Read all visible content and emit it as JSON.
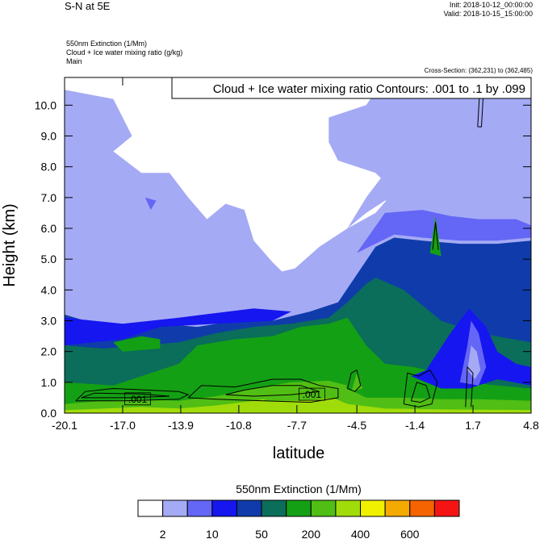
{
  "header": {
    "title": "S-N at 5E",
    "init": "Init: 2018-10-12_00:00:00",
    "valid": "Valid: 2018-10-15_15:00:00",
    "fields": [
      "550nm Extinction   (1/Mm)",
      "Cloud + Ice water mixing ratio   (g/kg)",
      "Main"
    ],
    "cross_section": "Cross-Section: (362,231) to (362,485)"
  },
  "chart_data": {
    "type": "heatmap",
    "title": "S-N at 5E",
    "xlabel": "latitude",
    "ylabel": "Height (km)",
    "xlim": [
      -20.1,
      4.8
    ],
    "ylim": [
      0.0,
      10.9
    ],
    "x_ticks": [
      -20.1,
      -17.0,
      -13.9,
      -10.8,
      -7.7,
      -4.5,
      -1.4,
      1.7,
      4.8
    ],
    "x_tick_labels": [
      "-20.1",
      "-17.0",
      "-13.9",
      "-10.8",
      "-7.7",
      "-4.5",
      "-1.4",
      "1.7",
      "4.8"
    ],
    "y_ticks": [
      0,
      1,
      2,
      3,
      4,
      5,
      6,
      7,
      8,
      9,
      10
    ],
    "y_tick_labels": [
      "0.0",
      "1.0",
      "2.0",
      "3.0",
      "4.0",
      "5.0",
      "6.0",
      "7.0",
      "8.0",
      "9.0",
      "10.0"
    ],
    "contour_title": "Cloud + Ice water mixing ratio Contours: .001 to .1 by .099",
    "contour_levels": [
      0.001,
      0.1
    ],
    "contour_labels": [
      {
        "text": ".001",
        "lat": -16.2,
        "h": 0.45
      },
      {
        "text": ".001",
        "lat": -6.9,
        "h": 0.6
      }
    ],
    "colorbar": {
      "title": "550nm Extinction  (1/Mm)",
      "colors": [
        "#ffffff",
        "#a5aaf5",
        "#6466f5",
        "#1616f0",
        "#0f3caa",
        "#0a6e5a",
        "#14a014",
        "#50be14",
        "#a0dc0a",
        "#f0f000",
        "#f5aa00",
        "#f56400",
        "#f51414"
      ],
      "labels": [
        "2",
        "10",
        "50",
        "200",
        "400",
        "600"
      ]
    },
    "bands": [
      {
        "class": 4,
        "upper": [
          [
            -20.1,
            3.2
          ],
          [
            -19.0,
            3.0
          ],
          [
            -17.0,
            2.7
          ],
          [
            -15.0,
            2.9
          ],
          [
            -13.0,
            2.8
          ],
          [
            -11.0,
            3.0
          ],
          [
            -9.0,
            3.0
          ],
          [
            -7.0,
            3.3
          ],
          [
            -5.5,
            3.6
          ],
          [
            -4.5,
            4.5
          ],
          [
            -3.5,
            5.4
          ],
          [
            -2.5,
            5.7
          ],
          [
            -1.0,
            5.6
          ],
          [
            1.0,
            5.5
          ],
          [
            3.0,
            5.5
          ],
          [
            4.8,
            5.6
          ]
        ]
      },
      {
        "class": 5,
        "upper": [
          [
            -20.1,
            2.2
          ],
          [
            -18.0,
            2.1
          ],
          [
            -16.0,
            2.2
          ],
          [
            -14.0,
            2.3
          ],
          [
            -12.0,
            2.6
          ],
          [
            -10.0,
            2.8
          ],
          [
            -8.0,
            2.9
          ],
          [
            -6.0,
            3.1
          ],
          [
            -5.0,
            3.6
          ],
          [
            -4.0,
            4.2
          ],
          [
            -3.5,
            4.4
          ],
          [
            -2.0,
            4.0
          ],
          [
            -1.0,
            3.5
          ],
          [
            0.0,
            3.0
          ],
          [
            2.0,
            2.6
          ],
          [
            4.8,
            2.3
          ]
        ]
      },
      {
        "class": 6,
        "upper": [
          [
            -20.1,
            1.0
          ],
          [
            -17.5,
            0.9
          ],
          [
            -16.0,
            1.2
          ],
          [
            -14.0,
            1.6
          ],
          [
            -13.0,
            2.2
          ],
          [
            -11.0,
            2.4
          ],
          [
            -9.0,
            2.5
          ],
          [
            -7.5,
            2.8
          ],
          [
            -6.0,
            2.9
          ],
          [
            -5.0,
            3.1
          ],
          [
            -4.0,
            2.2
          ],
          [
            -3.0,
            1.6
          ],
          [
            -1.5,
            1.5
          ],
          [
            0.0,
            1.3
          ],
          [
            1.5,
            1.0
          ],
          [
            3.0,
            0.9
          ],
          [
            4.8,
            0.8
          ]
        ]
      },
      {
        "class": 7,
        "upper": [
          [
            -20.1,
            0.3
          ],
          [
            -18.0,
            0.4
          ],
          [
            -16.0,
            0.45
          ],
          [
            -14.0,
            0.4
          ],
          [
            -12.0,
            0.55
          ],
          [
            -10.0,
            0.8
          ],
          [
            -8.0,
            1.0
          ],
          [
            -6.0,
            1.05
          ],
          [
            -5.0,
            0.8
          ],
          [
            -4.0,
            0.5
          ],
          [
            -2.0,
            0.5
          ],
          [
            0.0,
            0.45
          ],
          [
            2.0,
            0.45
          ],
          [
            4.8,
            0.4
          ]
        ]
      },
      {
        "class": 8,
        "upper": [
          [
            -20.1,
            0.1
          ],
          [
            -18.0,
            0.15
          ],
          [
            -16.0,
            0.2
          ],
          [
            -14.0,
            0.15
          ],
          [
            -12.0,
            0.25
          ],
          [
            -10.0,
            0.4
          ],
          [
            -8.0,
            0.6
          ],
          [
            -6.0,
            0.55
          ],
          [
            -5.0,
            0.3
          ],
          [
            -3.0,
            0.15
          ],
          [
            0.0,
            0.12
          ],
          [
            4.8,
            0.1
          ]
        ]
      }
    ],
    "features": [
      {
        "class": 0,
        "points": [
          [
            -20.1,
            10.9
          ],
          [
            -20.1,
            10.5
          ],
          [
            -17.5,
            10.2
          ],
          [
            -16.5,
            9.0
          ],
          [
            -17.5,
            8.5
          ],
          [
            -16.0,
            7.8
          ],
          [
            -14.5,
            7.8
          ],
          [
            -13.5,
            7.0
          ],
          [
            -12.5,
            6.3
          ],
          [
            -11.5,
            6.8
          ],
          [
            -10.5,
            6.6
          ],
          [
            -10.0,
            5.6
          ],
          [
            -9.0,
            4.9
          ],
          [
            -8.5,
            4.6
          ],
          [
            -7.8,
            4.7
          ],
          [
            -6.5,
            5.4
          ],
          [
            -5.0,
            6.0
          ],
          [
            -3.5,
            6.5
          ],
          [
            -2.5,
            7.2
          ],
          [
            -3.5,
            7.8
          ],
          [
            -5.5,
            8.2
          ],
          [
            -6.0,
            8.8
          ],
          [
            -6.0,
            9.6
          ],
          [
            -4.0,
            10.0
          ],
          [
            -3.0,
            10.9
          ]
        ]
      },
      {
        "class": 1,
        "points": [
          [
            -2.5,
            10.9
          ],
          [
            0.0,
            10.3
          ],
          [
            2.5,
            9.6
          ],
          [
            4.8,
            9.3
          ],
          [
            4.8,
            6.8
          ],
          [
            4.0,
            7.0
          ],
          [
            3.0,
            7.2
          ],
          [
            2.0,
            6.8
          ],
          [
            0.5,
            6.6
          ],
          [
            -1.0,
            6.8
          ],
          [
            -2.0,
            7.0
          ],
          [
            -3.0,
            6.9
          ],
          [
            -4.0,
            6.5
          ],
          [
            -5.0,
            6.0
          ],
          [
            -4.0,
            7.0
          ],
          [
            -3.0,
            7.8
          ],
          [
            -4.0,
            8.5
          ],
          [
            -3.5,
            9.5
          ]
        ]
      },
      {
        "class": 2,
        "points": [
          [
            -4.5,
            5.2
          ],
          [
            -3.0,
            6.5
          ],
          [
            -1.0,
            6.6
          ],
          [
            0.5,
            6.4
          ],
          [
            2.0,
            6.3
          ],
          [
            4.0,
            6.3
          ],
          [
            4.8,
            6.1
          ],
          [
            4.8,
            5.7
          ],
          [
            3.0,
            5.6
          ],
          [
            1.0,
            5.6
          ],
          [
            -1.0,
            5.7
          ],
          [
            -2.5,
            5.8
          ]
        ]
      },
      {
        "class": 3,
        "points": [
          [
            -20.1,
            2.2
          ],
          [
            -17.0,
            2.4
          ],
          [
            -15.0,
            2.8
          ],
          [
            -12.0,
            2.9
          ],
          [
            -9.0,
            3.0
          ],
          [
            -8.0,
            3.3
          ],
          [
            -10.0,
            3.4
          ],
          [
            -14.0,
            3.1
          ],
          [
            -17.0,
            2.9
          ],
          [
            -20.1,
            3.1
          ]
        ]
      },
      {
        "class": 3,
        "points": [
          [
            -1.6,
            1.2
          ],
          [
            -0.8,
            1.4
          ],
          [
            0.5,
            2.6
          ],
          [
            1.5,
            3.4
          ],
          [
            2.4,
            2.8
          ],
          [
            3.0,
            2.0
          ],
          [
            4.0,
            1.6
          ],
          [
            4.8,
            1.5
          ],
          [
            4.8,
            0.9
          ],
          [
            3.0,
            1.1
          ],
          [
            1.5,
            0.8
          ],
          [
            0.0,
            0.8
          ]
        ]
      },
      {
        "class": 2,
        "points": [
          [
            1.0,
            1.0
          ],
          [
            1.4,
            2.2
          ],
          [
            1.6,
            3.0
          ],
          [
            2.0,
            2.6
          ],
          [
            2.4,
            1.5
          ],
          [
            2.0,
            0.9
          ]
        ]
      },
      {
        "class": 1,
        "points": [
          [
            1.4,
            1.4
          ],
          [
            1.6,
            2.2
          ],
          [
            1.9,
            2.0
          ],
          [
            2.1,
            1.4
          ],
          [
            1.8,
            1.1
          ]
        ]
      },
      {
        "class": 6,
        "points": [
          [
            -17.5,
            2.3
          ],
          [
            -16.0,
            2.5
          ],
          [
            -15.0,
            2.4
          ],
          [
            -15.0,
            2.1
          ],
          [
            -17.0,
            2.0
          ]
        ]
      },
      {
        "class": 6,
        "points": [
          [
            -0.6,
            5.2
          ],
          [
            -0.3,
            6.4
          ],
          [
            0.0,
            5.1
          ]
        ]
      },
      {
        "class": 7,
        "points": [
          [
            -9.5,
            0.4
          ],
          [
            -8.5,
            0.9
          ],
          [
            -7.0,
            1.0
          ],
          [
            -6.0,
            1.05
          ],
          [
            -5.0,
            0.9
          ],
          [
            -5.5,
            0.5
          ],
          [
            -7.5,
            0.4
          ]
        ]
      },
      {
        "class": 7,
        "points": [
          [
            -4.8,
            0.7
          ],
          [
            -4.5,
            1.3
          ],
          [
            -4.2,
            0.8
          ]
        ]
      },
      {
        "class": 2,
        "points": [
          [
            -15.8,
            7.0
          ],
          [
            -15.5,
            6.6
          ],
          [
            -15.2,
            6.9
          ]
        ]
      }
    ],
    "contours": [
      [
        [
          -19.5,
          0.4
        ],
        [
          -19.0,
          0.7
        ],
        [
          -17.5,
          0.8
        ],
        [
          -14.0,
          0.7
        ],
        [
          -13.5,
          0.6
        ],
        [
          -14.0,
          0.45
        ],
        [
          -17.0,
          0.4
        ],
        [
          -18.5,
          0.4
        ],
        [
          -19.5,
          0.4
        ]
      ],
      [
        [
          -19.2,
          0.5
        ],
        [
          -18.5,
          0.65
        ],
        [
          -16.0,
          0.62
        ],
        [
          -14.5,
          0.55
        ],
        [
          -16.5,
          0.5
        ],
        [
          -19.2,
          0.5
        ]
      ],
      [
        [
          -13.5,
          0.5
        ],
        [
          -12.8,
          0.9
        ],
        [
          -11.0,
          0.85
        ],
        [
          -9.0,
          1.1
        ],
        [
          -7.5,
          1.1
        ],
        [
          -6.5,
          0.9
        ],
        [
          -5.5,
          0.8
        ],
        [
          -5.5,
          0.5
        ],
        [
          -7.0,
          0.35
        ],
        [
          -9.5,
          0.4
        ],
        [
          -12.0,
          0.45
        ],
        [
          -13.5,
          0.5
        ]
      ],
      [
        [
          -11.5,
          0.6
        ],
        [
          -10.5,
          0.75
        ],
        [
          -9.0,
          0.9
        ],
        [
          -7.5,
          0.9
        ],
        [
          -6.5,
          0.7
        ],
        [
          -8.0,
          0.6
        ],
        [
          -10.0,
          0.55
        ],
        [
          -11.5,
          0.6
        ]
      ],
      [
        [
          -5.0,
          0.8
        ],
        [
          -4.8,
          1.3
        ],
        [
          -4.5,
          1.4
        ],
        [
          -4.3,
          0.9
        ],
        [
          -4.6,
          0.7
        ],
        [
          -5.0,
          0.8
        ]
      ],
      [
        [
          -2.0,
          0.3
        ],
        [
          -1.8,
          1.3
        ],
        [
          -1.2,
          1.2
        ],
        [
          -0.6,
          1.4
        ],
        [
          -0.2,
          1.0
        ],
        [
          -0.5,
          0.3
        ],
        [
          -1.2,
          0.2
        ],
        [
          -2.0,
          0.3
        ]
      ],
      [
        [
          -1.6,
          0.4
        ],
        [
          -1.3,
          1.0
        ],
        [
          -0.8,
          0.9
        ],
        [
          -0.6,
          0.5
        ],
        [
          -1.1,
          0.35
        ],
        [
          -1.6,
          0.4
        ]
      ],
      [
        [
          -0.45,
          5.3
        ],
        [
          -0.3,
          6.2
        ],
        [
          -0.15,
          5.3
        ]
      ],
      [
        [
          1.3,
          0.2
        ],
        [
          1.4,
          1.5
        ],
        [
          1.7,
          1.3
        ],
        [
          1.6,
          0.2
        ]
      ],
      [
        [
          1.95,
          9.3
        ],
        [
          2.1,
          10.9
        ],
        [
          2.3,
          10.9
        ],
        [
          2.15,
          9.3
        ],
        [
          1.95,
          9.3
        ]
      ]
    ]
  }
}
